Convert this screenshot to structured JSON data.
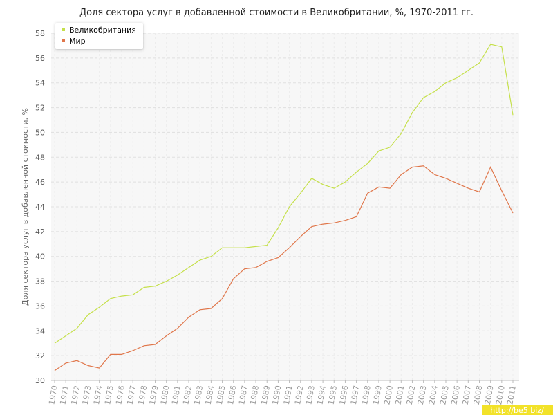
{
  "chart_data": {
    "type": "line",
    "title": "Доля сектора услуг в добавленной стоимости в Великобритании, %, 1970-2011 гг.",
    "ylabel": "Доля сектора услуг в добавленной стоимости, %",
    "xlabel": "",
    "ylim": [
      30,
      58
    ],
    "yticks": [
      30,
      32,
      34,
      36,
      38,
      40,
      42,
      44,
      46,
      48,
      50,
      52,
      54,
      56,
      58
    ],
    "grid": true,
    "legend_position": "top-left",
    "x": [
      "1970",
      "1971",
      "1972",
      "1973",
      "1974",
      "1975",
      "1976",
      "1977",
      "1978",
      "1979",
      "1980",
      "1981",
      "1982",
      "1983",
      "1984",
      "1985",
      "1986",
      "1987",
      "1988",
      "1989",
      "1990",
      "1991",
      "1992",
      "1993",
      "1994",
      "1995",
      "1996",
      "1997",
      "1998",
      "1999",
      "2000",
      "2001",
      "2002",
      "2003",
      "2004",
      "2005",
      "2006",
      "2007",
      "2008",
      "2009",
      "2010",
      "2011"
    ],
    "series": [
      {
        "name": "Великобритания",
        "color": "#c5e04a",
        "values": [
          33.0,
          33.6,
          34.2,
          35.3,
          35.9,
          36.6,
          36.8,
          36.9,
          37.5,
          37.6,
          38.0,
          38.5,
          39.1,
          39.7,
          40.0,
          40.7,
          40.7,
          40.7,
          40.8,
          40.9,
          42.3,
          44.0,
          45.1,
          46.3,
          45.8,
          45.5,
          46.0,
          46.8,
          47.5,
          48.5,
          48.8,
          49.9,
          51.6,
          52.8,
          53.3,
          54.0,
          54.4,
          55.0,
          55.6,
          57.1,
          56.9,
          51.4
        ]
      },
      {
        "name": "Мир",
        "color": "#e0764a",
        "values": [
          30.8,
          31.4,
          31.6,
          31.2,
          31.0,
          32.1,
          32.1,
          32.4,
          32.8,
          32.9,
          33.6,
          34.2,
          35.1,
          35.7,
          35.8,
          36.6,
          38.2,
          39.0,
          39.1,
          39.6,
          39.9,
          40.7,
          41.6,
          42.4,
          42.6,
          42.7,
          42.9,
          43.2,
          45.1,
          45.6,
          45.5,
          46.6,
          47.2,
          47.3,
          46.6,
          46.3,
          45.9,
          45.5,
          45.2,
          47.2,
          45.3,
          43.5
        ]
      }
    ]
  },
  "watermark": "http://be5.biz/"
}
